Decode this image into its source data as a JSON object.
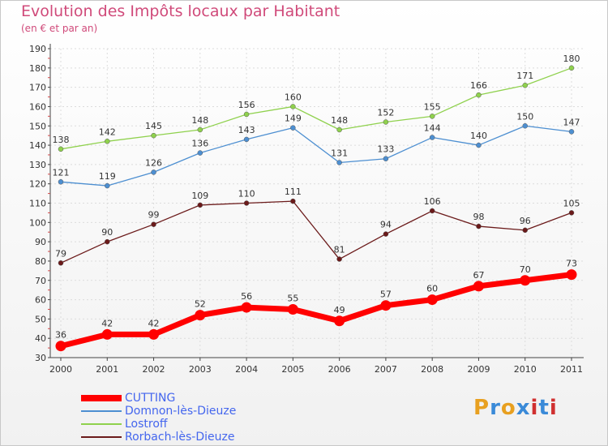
{
  "title": "Evolution des Impôts locaux par Habitant",
  "subtitle": "(en € et par an)",
  "logo_text": "Proxiti",
  "chart_data": {
    "type": "line",
    "title": "Evolution des Impôts locaux par Habitant",
    "subtitle": "(en € et par an)",
    "x": [
      "2000",
      "2001",
      "2002",
      "2003",
      "2004",
      "2005",
      "2006",
      "2007",
      "2008",
      "2009",
      "2010",
      "2011"
    ],
    "ylim": [
      30,
      190
    ],
    "yticks": [
      30,
      40,
      50,
      60,
      70,
      80,
      90,
      100,
      110,
      120,
      130,
      140,
      150,
      160,
      170,
      180,
      190
    ],
    "grid": true,
    "legend_position": "bottom-left",
    "series": [
      {
        "name": "CUTTING",
        "color": "#ff0000",
        "values": [
          36,
          42,
          42,
          52,
          56,
          55,
          49,
          57,
          60,
          67,
          70,
          73
        ]
      },
      {
        "name": "Domnon-lès-Dieuze",
        "color": "#4d8fd1",
        "values": [
          121,
          119,
          126,
          136,
          143,
          149,
          131,
          133,
          144,
          140,
          150,
          147
        ]
      },
      {
        "name": "Lostroff",
        "color": "#8fd14d",
        "values": [
          138,
          142,
          145,
          148,
          156,
          160,
          148,
          152,
          155,
          166,
          171,
          180
        ]
      },
      {
        "name": "Rorbach-lès-Dieuze",
        "color": "#6b1a1a",
        "values": [
          79,
          90,
          99,
          109,
          110,
          111,
          81,
          94,
          106,
          98,
          96,
          105
        ]
      }
    ]
  }
}
